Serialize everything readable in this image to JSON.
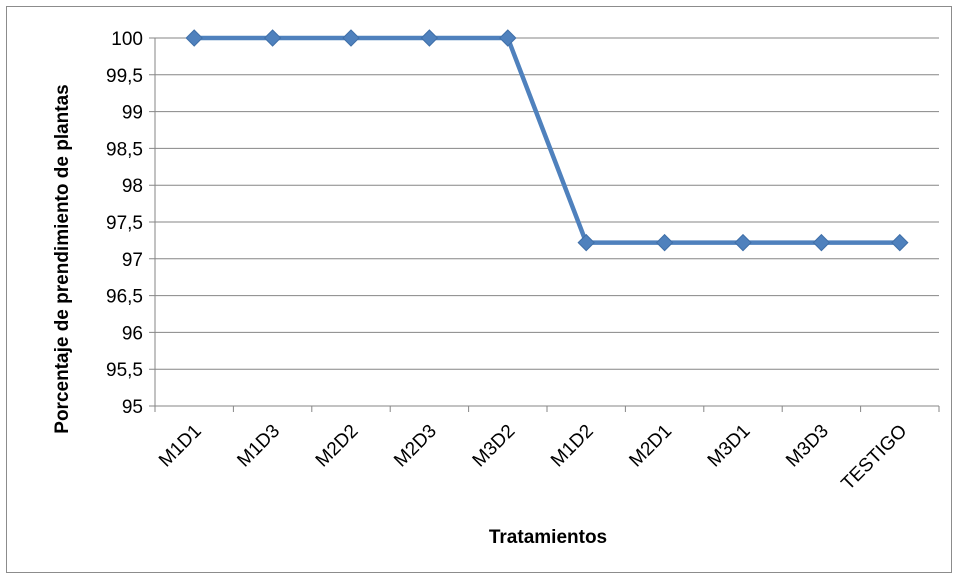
{
  "chart_data": {
    "type": "line",
    "categories": [
      "M1D1",
      "M1D3",
      "M2D2",
      "M2D3",
      "M3D2",
      "M1D2",
      "M2D1",
      "M3D1",
      "M3D3",
      "TESTIGO"
    ],
    "series": [
      {
        "values": [
          100,
          100,
          100,
          100,
          100,
          97.22,
          97.22,
          97.22,
          97.22,
          97.22
        ]
      }
    ],
    "title": "",
    "xlabel": "Tratamientos",
    "ylabel": "Porcentaje de prendimiento de plantas",
    "ylim": [
      95,
      100
    ],
    "yticks": [
      "95",
      "95,5",
      "96",
      "96,5",
      "97",
      "97,5",
      "98",
      "98,5",
      "99",
      "99,5",
      "100"
    ],
    "grid": true,
    "legend": "none",
    "marker": "diamond"
  },
  "colors": {
    "series": "#4f81bd",
    "grid": "#868686",
    "frame": "#8c8c8c"
  }
}
